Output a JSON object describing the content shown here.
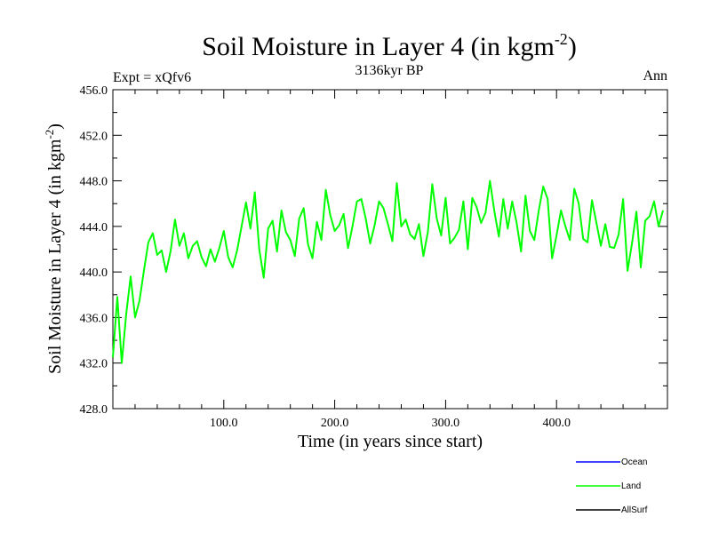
{
  "chart_data": {
    "type": "line",
    "title": "Soil Moisture in Layer 4 (in kgm",
    "title_sup": "-2",
    "title_end": ")",
    "subtitle_left": "Expt = xQfv6",
    "subtitle_center": "3136kyr BP",
    "subtitle_right": "Ann",
    "xlabel": "Time (in years since start)",
    "ylabel": "Soil Moisture in Layer 4 (in kgm",
    "ylabel_sup": "-2",
    "ylabel_end": ")",
    "xlim": [
      0,
      500
    ],
    "ylim": [
      428,
      456
    ],
    "xticks": [
      100,
      200,
      300,
      400
    ],
    "xtick_labels": [
      "100.0",
      "200.0",
      "300.0",
      "400.0"
    ],
    "yticks": [
      428,
      432,
      436,
      440,
      444,
      448,
      452,
      456
    ],
    "ytick_labels": [
      "428.0",
      "432.0",
      "436.0",
      "440.0",
      "444.0",
      "448.0",
      "452.0",
      "456.0"
    ],
    "legend": [
      {
        "name": "Ocean",
        "color": "#0000ff"
      },
      {
        "name": "Land",
        "color": "#00ff00"
      },
      {
        "name": "AllSurf",
        "color": "#000000"
      }
    ],
    "series": [
      {
        "name": "Land",
        "color": "#00ff00",
        "x_start": 0,
        "x_step": 4,
        "values": [
          432.5,
          437.8,
          432.0,
          436.3,
          439.6,
          436.0,
          437.5,
          440.1,
          442.6,
          443.4,
          441.5,
          441.9,
          440.0,
          441.8,
          444.6,
          442.3,
          443.4,
          441.2,
          442.3,
          442.7,
          441.3,
          440.5,
          442.0,
          440.9,
          442.1,
          443.6,
          441.3,
          440.4,
          441.9,
          444.0,
          446.1,
          443.8,
          447.0,
          442.0,
          439.5,
          443.8,
          444.5,
          441.8,
          445.4,
          443.5,
          442.8,
          441.4,
          444.7,
          445.6,
          442.4,
          441.2,
          444.4,
          442.8,
          447.2,
          445.0,
          443.6,
          444.1,
          445.1,
          442.1,
          444.0,
          446.2,
          446.4,
          444.7,
          442.5,
          444.1,
          446.2,
          445.6,
          444.2,
          442.7,
          447.8,
          444.0,
          444.6,
          443.3,
          442.9,
          444.2,
          441.4,
          443.5,
          447.7,
          444.7,
          443.2,
          446.5,
          442.5,
          443.0,
          443.7,
          446.2,
          442.0,
          446.5,
          445.7,
          444.3,
          445.2,
          448.0,
          445.3,
          443.1,
          446.4,
          443.8,
          446.2,
          444.3,
          441.8,
          446.7,
          443.6,
          442.8,
          445.4,
          447.5,
          446.4,
          441.2,
          443.2,
          445.4,
          444.0,
          442.8,
          447.3,
          446.0,
          442.9,
          442.6,
          446.3,
          444.3,
          442.3,
          444.2,
          442.2,
          442.1,
          443.3,
          446.4,
          440.1,
          442.5,
          445.3,
          440.4,
          444.5,
          444.9,
          446.2,
          444.0,
          445.4
        ]
      }
    ]
  }
}
